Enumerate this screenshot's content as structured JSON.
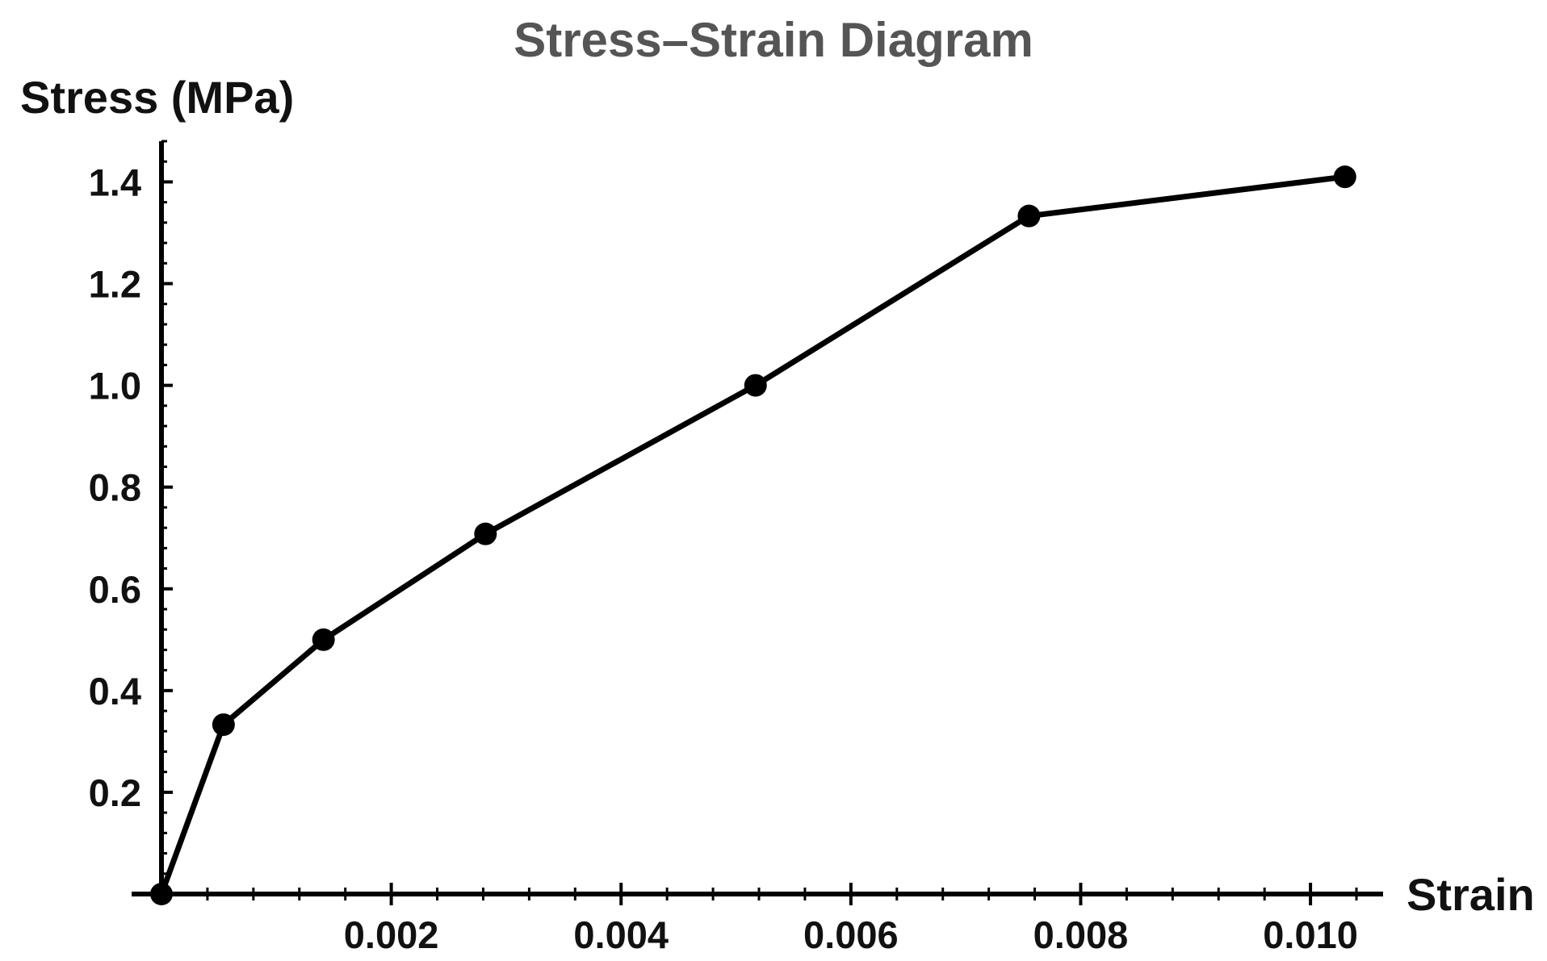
{
  "chart_data": {
    "type": "line",
    "title": "Stress–Strain Diagram",
    "xlabel": "Strain",
    "ylabel": "Stress (MPa)",
    "xlim": [
      0,
      0.0104
    ],
    "ylim": [
      0,
      1.48
    ],
    "x_ticks": [
      {
        "value": 0.002,
        "label": "0.002"
      },
      {
        "value": 0.004,
        "label": "0.004"
      },
      {
        "value": 0.006,
        "label": "0.006"
      },
      {
        "value": 0.008,
        "label": "0.008"
      },
      {
        "value": 0.01,
        "label": "0.010"
      }
    ],
    "y_ticks": [
      {
        "value": 0.2,
        "label": "0.2"
      },
      {
        "value": 0.4,
        "label": "0.4"
      },
      {
        "value": 0.6,
        "label": "0.6"
      },
      {
        "value": 0.8,
        "label": "0.8"
      },
      {
        "value": 1.0,
        "label": "1.0"
      },
      {
        "value": 1.2,
        "label": "1.2"
      },
      {
        "value": 1.4,
        "label": "1.4"
      }
    ],
    "grid": false,
    "legend": "none",
    "series": [
      {
        "x": [
          0,
          0.00054,
          0.00141,
          0.00282,
          0.00517,
          0.00755,
          0.0103
        ],
        "y": [
          0,
          0.333,
          0.5,
          0.708,
          1.0,
          1.333,
          1.41
        ],
        "color": "#000000"
      }
    ]
  }
}
